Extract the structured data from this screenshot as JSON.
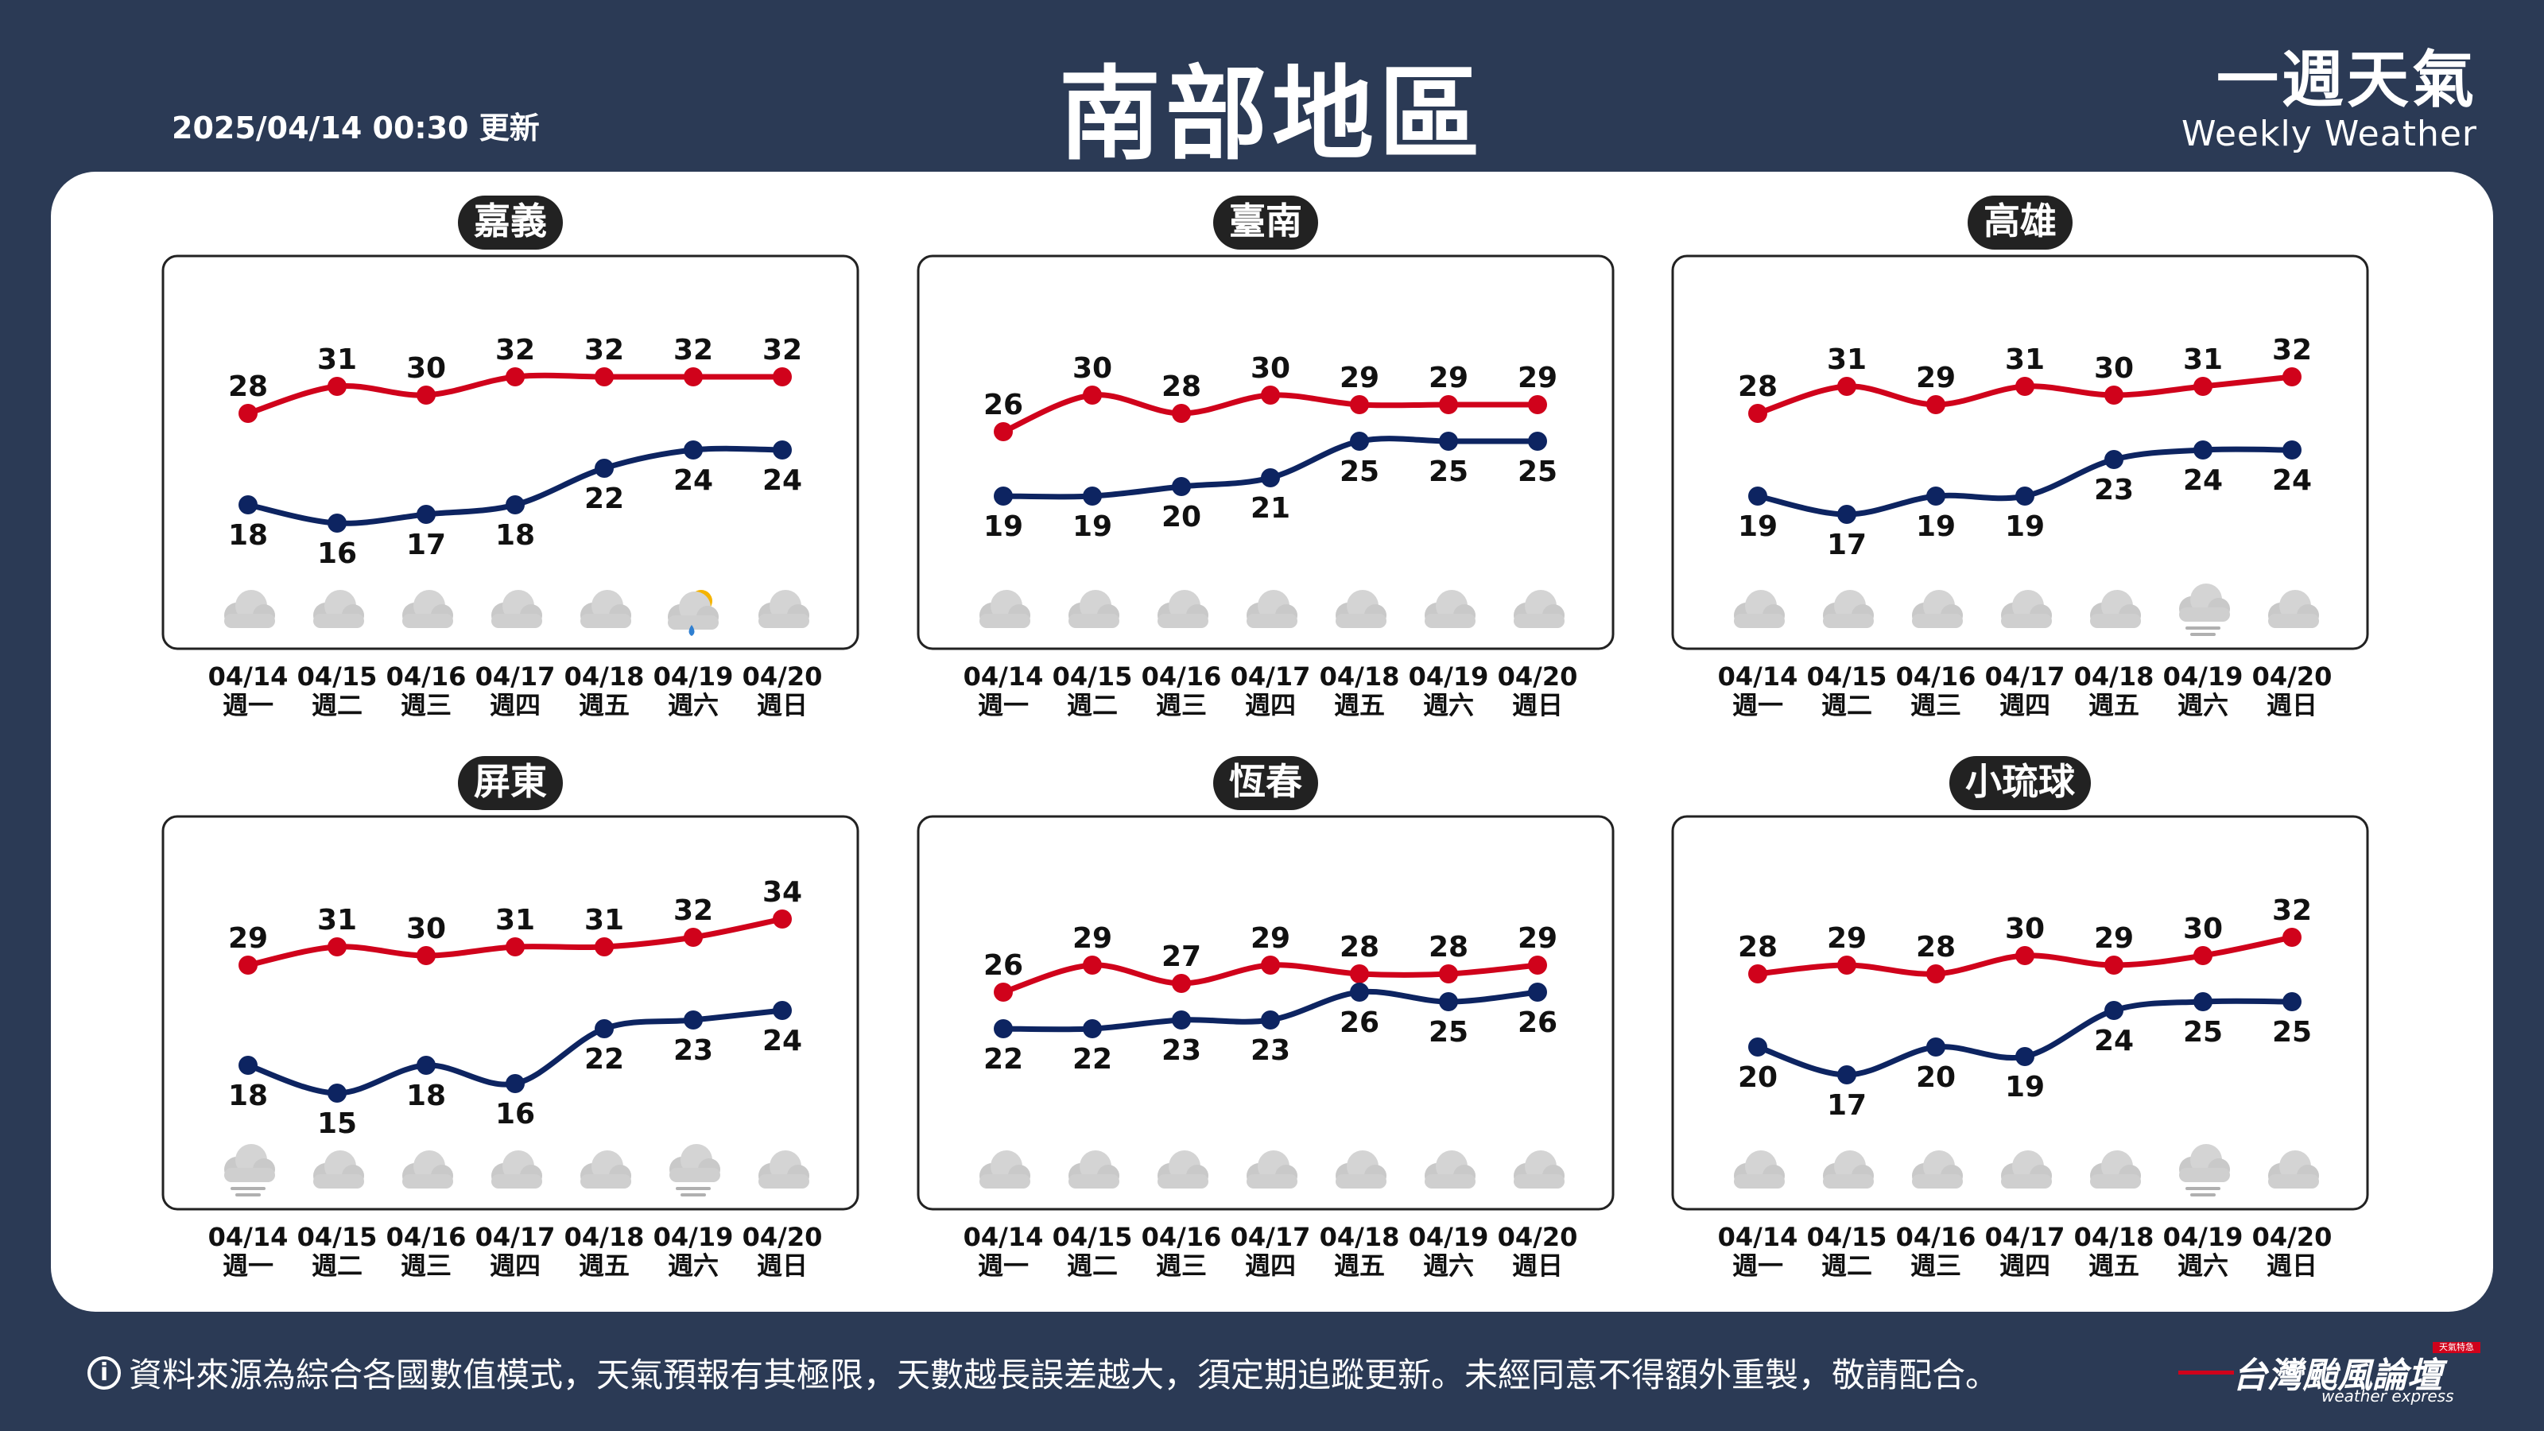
{
  "header": {
    "updated": "2025/04/14 00:30 更新",
    "title": "南部地區",
    "brand_zh": "一週天氣",
    "brand_en": "Weekly Weather"
  },
  "footer": {
    "info_icon": "i",
    "note": "資料來源為綜合各國數值模式，天氣預報有其極限，天數越長誤差越大，須定期追蹤更新。未經同意不得額外重製，敬請配合。",
    "logo_zh": "台灣颱風論壇",
    "logo_en": "weather express",
    "logo_tag": "天氣特急"
  },
  "colors": {
    "high": "#d0021b",
    "low": "#0d2461",
    "background": "#2b3a55",
    "label_bg": "#222222"
  },
  "chart_data": [
    {
      "type": "line",
      "location": "嘉義",
      "categories": [
        "04/14",
        "04/15",
        "04/16",
        "04/17",
        "04/18",
        "04/19",
        "04/20"
      ],
      "weekdays": [
        "週一",
        "週二",
        "週三",
        "週四",
        "週五",
        "週六",
        "週日"
      ],
      "series": [
        {
          "values": [
            28,
            31,
            30,
            32,
            32,
            32,
            32
          ]
        },
        {
          "values": [
            18,
            16,
            17,
            18,
            22,
            24,
            24
          ]
        }
      ],
      "icons": [
        "cloudy",
        "cloudy",
        "cloudy",
        "cloudy",
        "cloudy",
        "sun-rain",
        "cloudy"
      ]
    },
    {
      "type": "line",
      "location": "臺南",
      "categories": [
        "04/14",
        "04/15",
        "04/16",
        "04/17",
        "04/18",
        "04/19",
        "04/20"
      ],
      "weekdays": [
        "週一",
        "週二",
        "週三",
        "週四",
        "週五",
        "週六",
        "週日"
      ],
      "series": [
        {
          "values": [
            26,
            30,
            28,
            30,
            29,
            29,
            29
          ]
        },
        {
          "values": [
            19,
            19,
            20,
            21,
            25,
            25,
            25
          ]
        }
      ],
      "icons": [
        "cloudy",
        "cloudy",
        "cloudy",
        "cloudy",
        "cloudy",
        "cloudy",
        "cloudy"
      ]
    },
    {
      "type": "line",
      "location": "高雄",
      "categories": [
        "04/14",
        "04/15",
        "04/16",
        "04/17",
        "04/18",
        "04/19",
        "04/20"
      ],
      "weekdays": [
        "週一",
        "週二",
        "週三",
        "週四",
        "週五",
        "週六",
        "週日"
      ],
      "series": [
        {
          "values": [
            28,
            31,
            29,
            31,
            30,
            31,
            32
          ]
        },
        {
          "values": [
            19,
            17,
            19,
            19,
            23,
            24,
            24
          ]
        }
      ],
      "icons": [
        "cloudy",
        "cloudy",
        "cloudy",
        "cloudy",
        "cloudy",
        "fog",
        "cloudy"
      ]
    },
    {
      "type": "line",
      "location": "屏東",
      "categories": [
        "04/14",
        "04/15",
        "04/16",
        "04/17",
        "04/18",
        "04/19",
        "04/20"
      ],
      "weekdays": [
        "週一",
        "週二",
        "週三",
        "週四",
        "週五",
        "週六",
        "週日"
      ],
      "series": [
        {
          "values": [
            29,
            31,
            30,
            31,
            31,
            32,
            34
          ]
        },
        {
          "values": [
            18,
            15,
            18,
            16,
            22,
            23,
            24
          ]
        }
      ],
      "icons": [
        "fog",
        "cloudy",
        "cloudy",
        "cloudy",
        "cloudy",
        "fog",
        "cloudy"
      ]
    },
    {
      "type": "line",
      "location": "恆春",
      "categories": [
        "04/14",
        "04/15",
        "04/16",
        "04/17",
        "04/18",
        "04/19",
        "04/20"
      ],
      "weekdays": [
        "週一",
        "週二",
        "週三",
        "週四",
        "週五",
        "週六",
        "週日"
      ],
      "series": [
        {
          "values": [
            26,
            29,
            27,
            29,
            28,
            28,
            29
          ]
        },
        {
          "values": [
            22,
            22,
            23,
            23,
            26,
            25,
            26
          ]
        }
      ],
      "icons": [
        "cloudy",
        "cloudy",
        "cloudy",
        "cloudy",
        "cloudy",
        "cloudy",
        "cloudy"
      ]
    },
    {
      "type": "line",
      "location": "小琉球",
      "categories": [
        "04/14",
        "04/15",
        "04/16",
        "04/17",
        "04/18",
        "04/19",
        "04/20"
      ],
      "weekdays": [
        "週一",
        "週二",
        "週三",
        "週四",
        "週五",
        "週六",
        "週日"
      ],
      "series": [
        {
          "values": [
            28,
            29,
            28,
            30,
            29,
            30,
            32
          ]
        },
        {
          "values": [
            20,
            17,
            20,
            19,
            24,
            25,
            25
          ]
        }
      ],
      "icons": [
        "cloudy",
        "cloudy",
        "cloudy",
        "cloudy",
        "cloudy",
        "fog",
        "cloudy"
      ]
    }
  ]
}
